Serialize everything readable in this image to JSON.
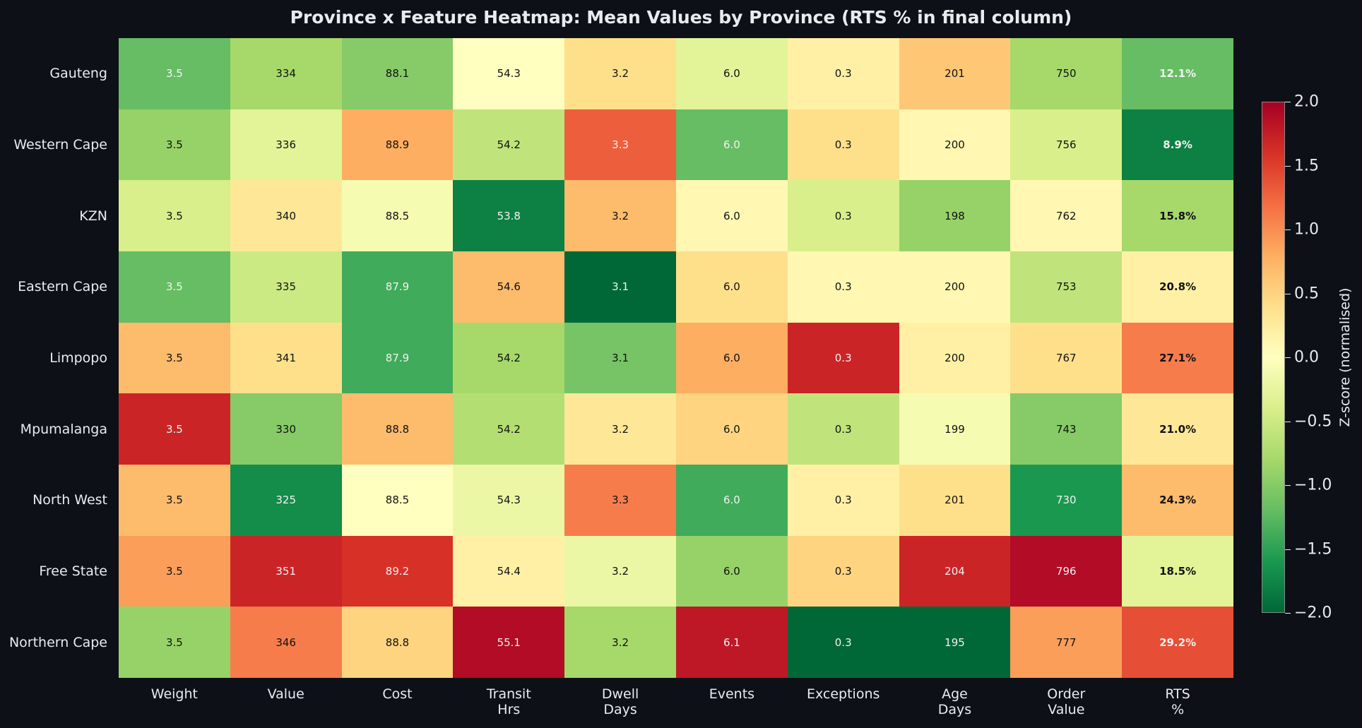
{
  "chart_data": {
    "type": "heatmap",
    "title": "Province x Feature Heatmap: Mean Values by Province (RTS % in final column)",
    "rows": [
      "Gauteng",
      "Western Cape",
      "KZN",
      "Eastern Cape",
      "Limpopo",
      "Mpumalanga",
      "North West",
      "Free State",
      "Northern Cape"
    ],
    "columns": [
      [
        "Weight"
      ],
      [
        "Value"
      ],
      [
        "Cost"
      ],
      [
        "Transit",
        "Hrs"
      ],
      [
        "Dwell",
        "Days"
      ],
      [
        "Events"
      ],
      [
        "Exceptions"
      ],
      [
        "Age",
        "Days"
      ],
      [
        "Order",
        "Value"
      ],
      [
        "RTS",
        "%"
      ]
    ],
    "labels": [
      [
        "3.5",
        "334",
        "88.1",
        "54.3",
        "3.2",
        "6.0",
        "0.3",
        "201",
        "750",
        "12.1%"
      ],
      [
        "3.5",
        "336",
        "88.9",
        "54.2",
        "3.3",
        "6.0",
        "0.3",
        "200",
        "756",
        "8.9%"
      ],
      [
        "3.5",
        "340",
        "88.5",
        "53.8",
        "3.2",
        "6.0",
        "0.3",
        "198",
        "762",
        "15.8%"
      ],
      [
        "3.5",
        "335",
        "87.9",
        "54.6",
        "3.1",
        "6.0",
        "0.3",
        "200",
        "753",
        "20.8%"
      ],
      [
        "3.5",
        "341",
        "87.9",
        "54.2",
        "3.1",
        "6.0",
        "0.3",
        "200",
        "767",
        "27.1%"
      ],
      [
        "3.5",
        "330",
        "88.8",
        "54.2",
        "3.2",
        "6.0",
        "0.3",
        "199",
        "743",
        "21.0%"
      ],
      [
        "3.5",
        "325",
        "88.5",
        "54.3",
        "3.3",
        "6.0",
        "0.3",
        "201",
        "730",
        "24.3%"
      ],
      [
        "3.5",
        "351",
        "89.2",
        "54.4",
        "3.2",
        "6.0",
        "0.3",
        "204",
        "796",
        "18.5%"
      ],
      [
        "3.5",
        "346",
        "88.8",
        "55.1",
        "3.2",
        "6.1",
        "0.3",
        "195",
        "777",
        "29.2%"
      ]
    ],
    "z_scores": [
      [
        -1.2,
        -0.8,
        -1.0,
        0.0,
        0.4,
        -0.3,
        0.2,
        0.6,
        -0.8,
        -1.2
      ],
      [
        -0.9,
        -0.3,
        0.8,
        -0.6,
        1.3,
        -1.2,
        0.4,
        0.1,
        -0.4,
        -1.8
      ],
      [
        -0.4,
        0.3,
        -0.1,
        -1.8,
        0.7,
        0.1,
        -0.4,
        -0.9,
        0.1,
        -0.8
      ],
      [
        -1.2,
        -0.5,
        -1.4,
        0.7,
        -2.0,
        0.4,
        0.1,
        0.1,
        -0.6,
        0.2
      ],
      [
        0.7,
        0.4,
        -1.4,
        -0.8,
        -1.1,
        0.8,
        1.7,
        0.2,
        0.4,
        1.1
      ],
      [
        1.7,
        -1.0,
        0.7,
        -0.7,
        0.3,
        0.5,
        -0.6,
        -0.1,
        -1.0,
        0.3
      ],
      [
        0.7,
        -1.7,
        0.0,
        -0.2,
        1.1,
        -1.4,
        0.2,
        0.4,
        -1.6,
        0.7
      ],
      [
        0.9,
        1.7,
        1.6,
        0.2,
        -0.2,
        -0.9,
        0.5,
        1.7,
        1.9,
        -0.3
      ],
      [
        -0.9,
        1.1,
        0.5,
        1.9,
        -0.8,
        1.8,
        -2.0,
        -2.0,
        0.9,
        1.4
      ]
    ],
    "bold_column": 9,
    "colormap": [
      "#006837",
      "#1a9850",
      "#66bd63",
      "#a6d96a",
      "#d9ef8b",
      "#ffffbf",
      "#fee08b",
      "#fdae61",
      "#f46d43",
      "#d73027",
      "#a50026"
    ],
    "vmin": -2.0,
    "vmax": 2.0,
    "colorbar_ticks": [
      "2.0",
      "1.5",
      "1.0",
      "0.5",
      "0.0",
      "−0.5",
      "−1.0",
      "−1.5",
      "−2.0"
    ],
    "colorbar_tick_values": [
      2.0,
      1.5,
      1.0,
      0.5,
      0.0,
      -0.5,
      -1.0,
      -1.5,
      -2.0
    ],
    "colorbar_label": "Z-score (normalised)"
  }
}
